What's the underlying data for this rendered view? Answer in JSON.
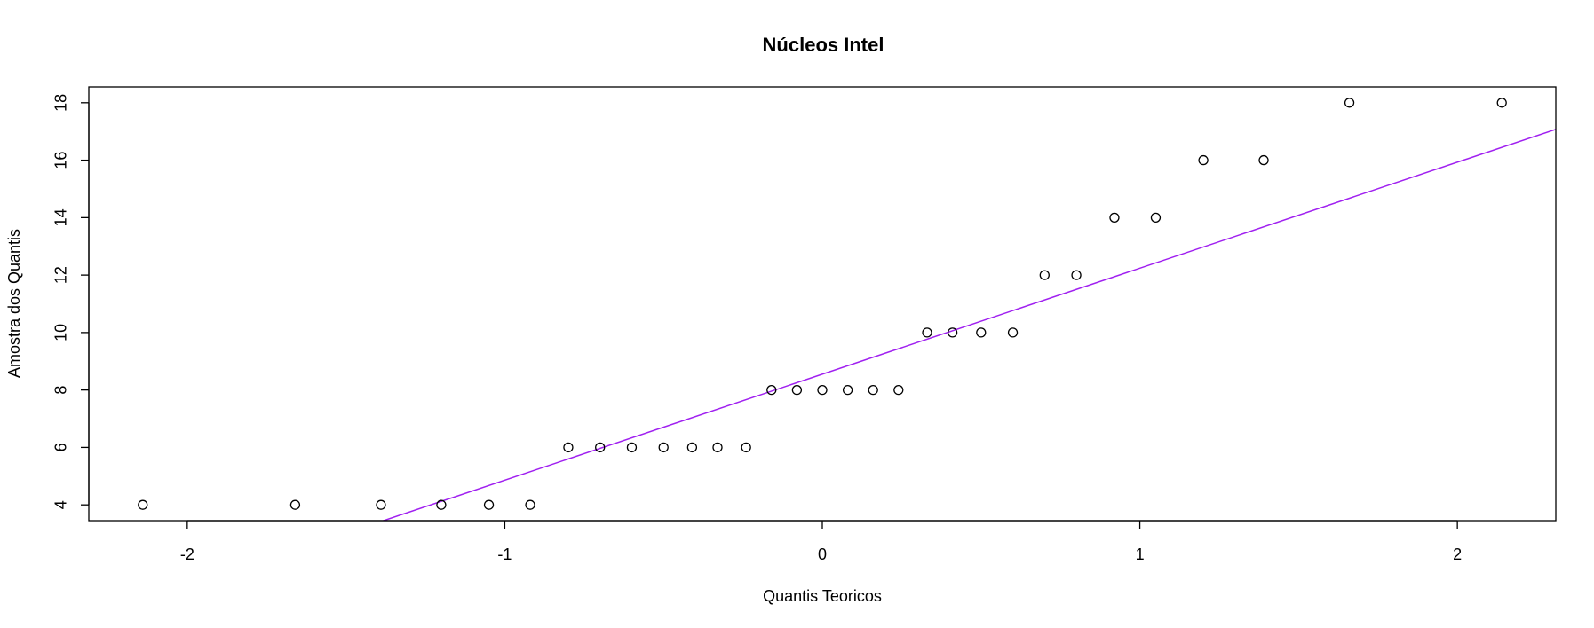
{
  "chart_data": {
    "type": "scatter",
    "title": "Núcleos Intel",
    "xlabel": "Quantis Teoricos",
    "ylabel": "Amostra dos Quantis",
    "xlim": [
      -2.31,
      2.31
    ],
    "ylim": [
      3.45,
      18.55
    ],
    "xticks": [
      -2,
      -1,
      0,
      1,
      2
    ],
    "xtick_labels": [
      "-2",
      "-1",
      "0",
      "1",
      "2"
    ],
    "yticks": [
      4,
      6,
      8,
      10,
      12,
      14,
      16,
      18
    ],
    "ytick_labels": [
      "4",
      "6",
      "8",
      "10",
      "12",
      "14",
      "16",
      "18"
    ],
    "grid": false,
    "series": [
      {
        "marker": "open-circle",
        "color": "#000000",
        "x": [
          -2.14,
          -1.66,
          -1.39,
          -1.2,
          -1.05,
          -0.92,
          -0.8,
          -0.7,
          -0.6,
          -0.5,
          -0.41,
          -0.33,
          -0.24,
          -0.16,
          -0.08,
          0.0,
          0.08,
          0.16,
          0.24,
          0.33,
          0.41,
          0.5,
          0.6,
          0.7,
          0.8,
          0.92,
          1.05,
          1.2,
          1.39,
          1.66,
          2.14
        ],
        "y": [
          4,
          4,
          4,
          4,
          4,
          4,
          6,
          6,
          6,
          6,
          6,
          6,
          6,
          8,
          8,
          8,
          8,
          8,
          8,
          10,
          10,
          10,
          10,
          12,
          12,
          14,
          14,
          16,
          16,
          18,
          18
        ]
      }
    ],
    "reference_line": {
      "color": "#a020f0",
      "intercept": 8.55,
      "slope": 3.69
    }
  }
}
